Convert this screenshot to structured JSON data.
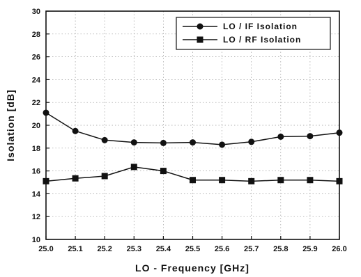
{
  "chart_data": {
    "type": "line",
    "xlabel": "LO - Frequency [GHz]",
    "ylabel": "Isolation [dB]",
    "xlim": [
      25.0,
      26.0
    ],
    "ylim": [
      10,
      30
    ],
    "x_ticks": [
      "25.0",
      "25.1",
      "25.2",
      "25.3",
      "25.4",
      "25.5",
      "25.6",
      "25.7",
      "25.8",
      "25.9",
      "26.0"
    ],
    "y_ticks": [
      "10",
      "12",
      "14",
      "16",
      "18",
      "20",
      "22",
      "24",
      "26",
      "28",
      "30"
    ],
    "grid": true,
    "legend_position": "top-right",
    "x": [
      25.0,
      25.1,
      25.2,
      25.3,
      25.4,
      25.5,
      25.6,
      25.7,
      25.8,
      25.9,
      26.0
    ],
    "series": [
      {
        "name": "LO / IF Isolation",
        "marker": "circle",
        "values": [
          21.1,
          19.5,
          18.7,
          18.5,
          18.45,
          18.5,
          18.3,
          18.55,
          19.0,
          19.05,
          19.35
        ]
      },
      {
        "name": "LO / RF Isolation",
        "marker": "square",
        "values": [
          15.1,
          15.35,
          15.55,
          16.35,
          16.0,
          15.2,
          15.2,
          15.1,
          15.2,
          15.2,
          15.1
        ]
      }
    ],
    "colors": {
      "line": "#111111",
      "grid": "#9a9a9a"
    }
  }
}
